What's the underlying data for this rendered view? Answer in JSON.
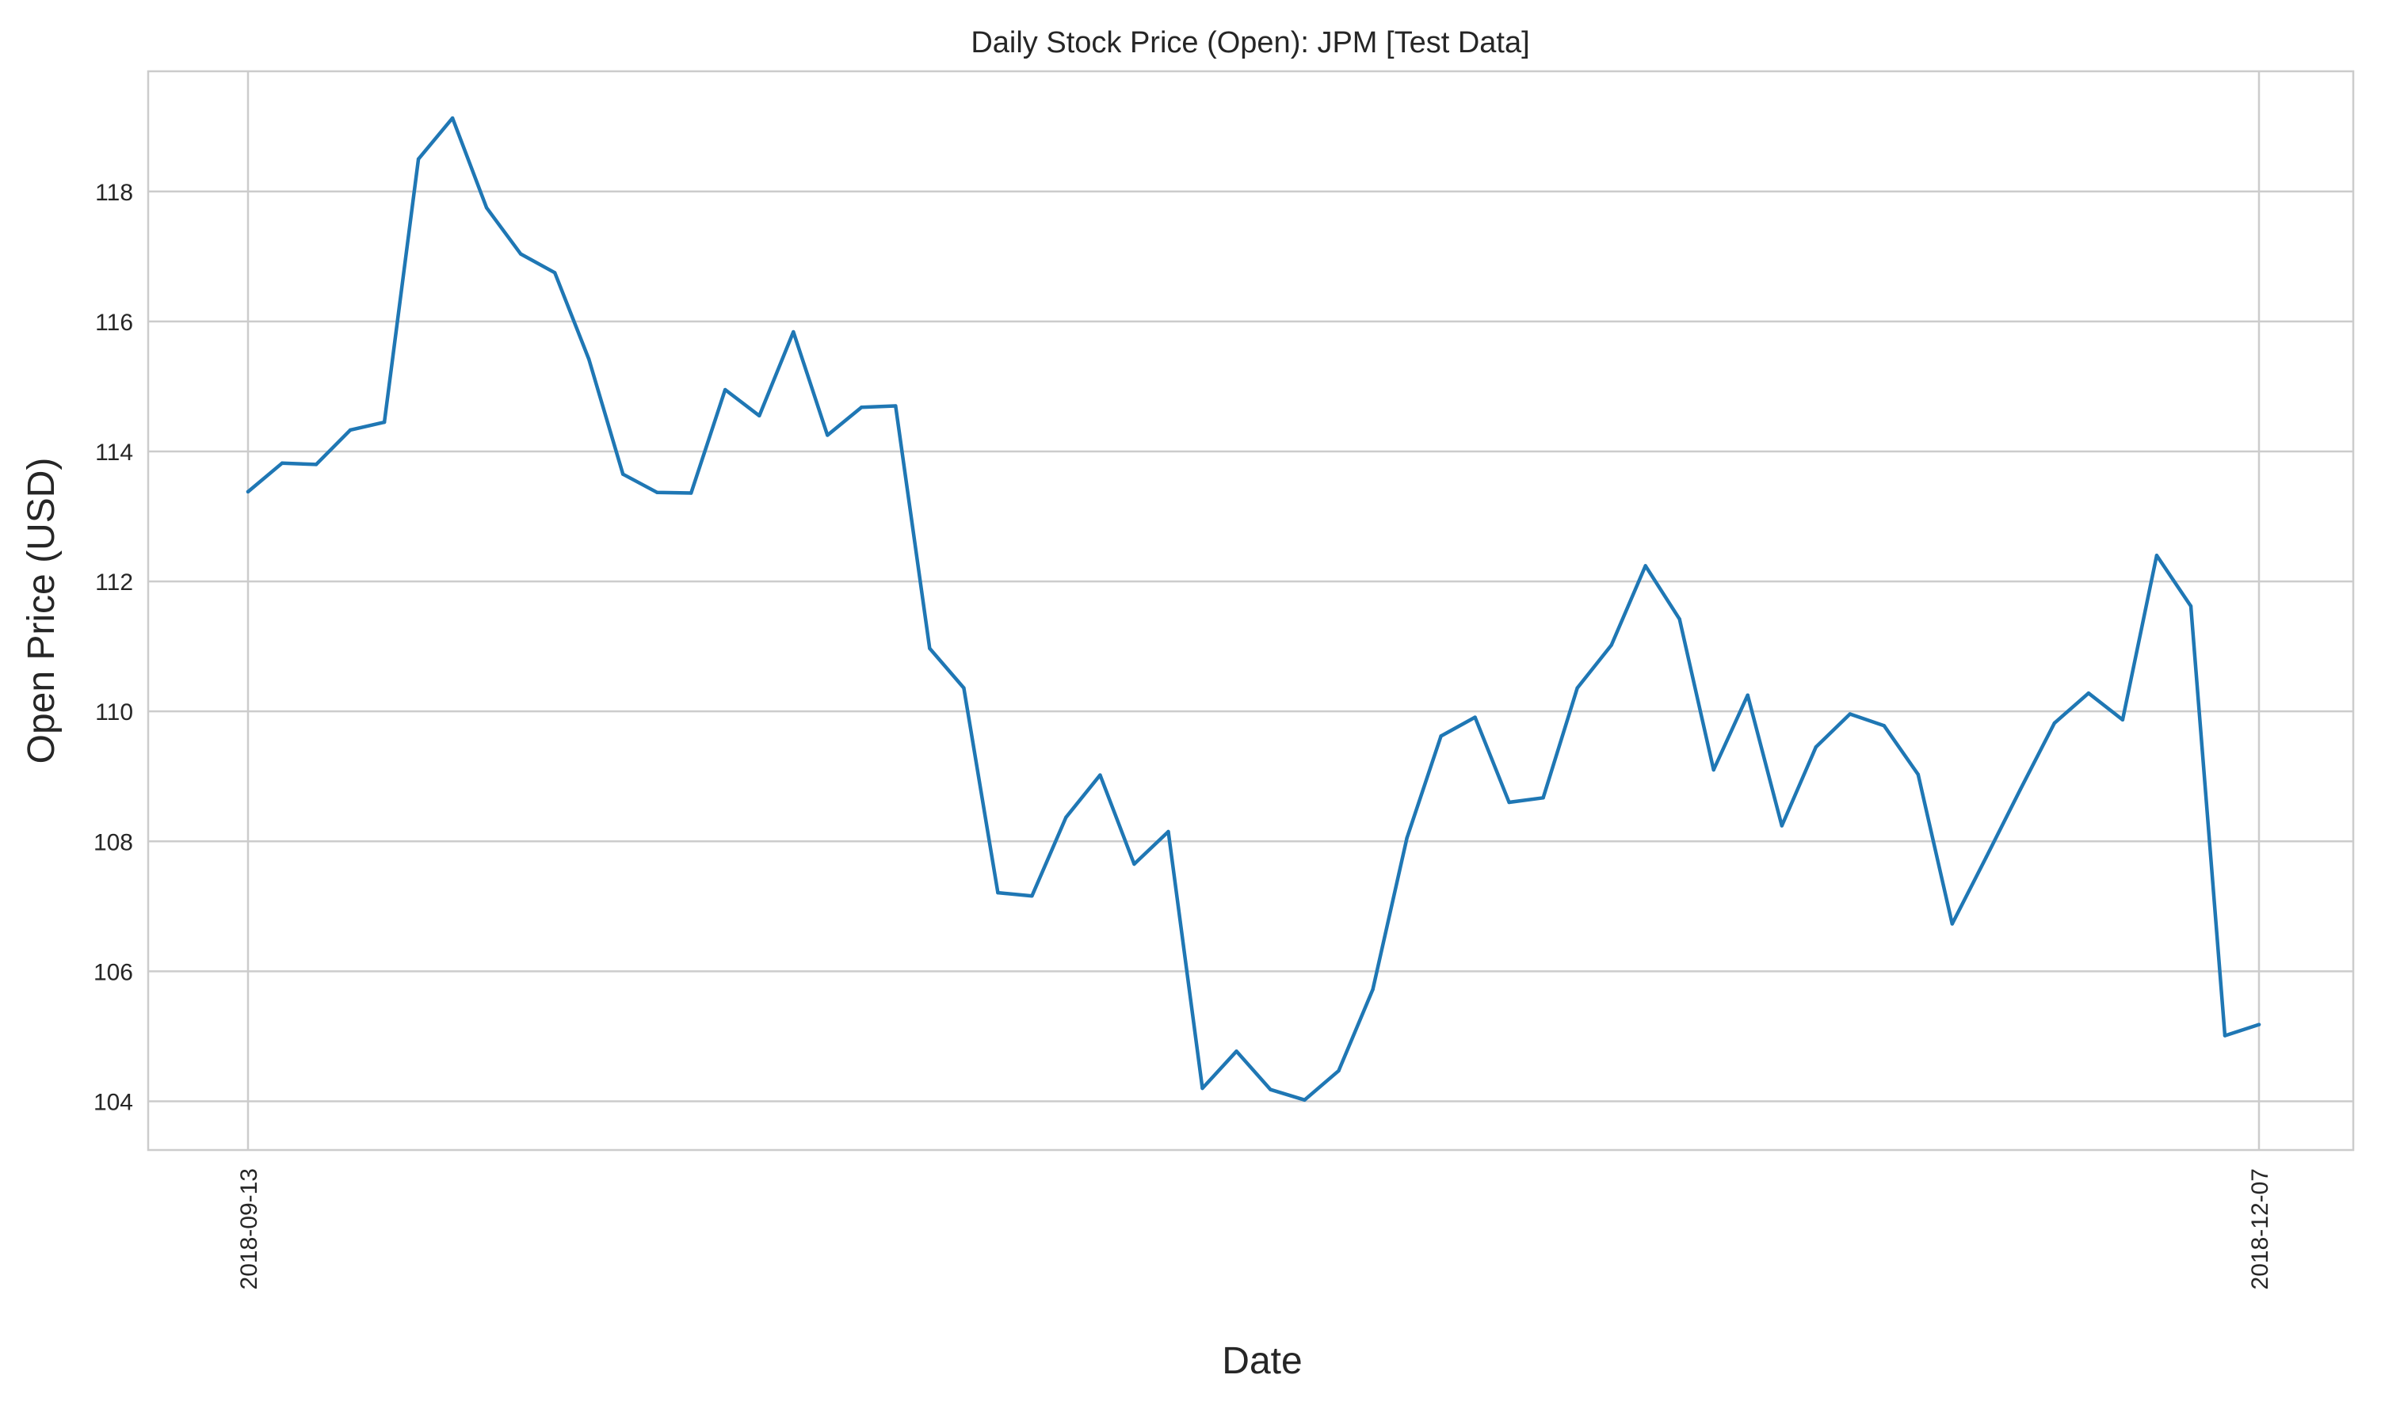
{
  "chart_data": {
    "type": "line",
    "title": "Daily Stock Price (Open): JPM [Test Data]",
    "xlabel": "Date",
    "ylabel": "Open Price (USD)",
    "x_tick_labels": [
      "2018-09-13",
      "2018-12-07"
    ],
    "y_ticks": [
      104,
      106,
      108,
      110,
      112,
      114,
      116,
      118
    ],
    "ylim": [
      103.25,
      119.85
    ],
    "grid": true,
    "legend": "none",
    "series": [
      {
        "color": "#1f77b4",
        "values": [
          113.38,
          113.82,
          113.8,
          114.33,
          114.45,
          118.5,
          119.13,
          117.75,
          117.04,
          116.75,
          115.42,
          113.65,
          113.37,
          113.36,
          114.95,
          114.55,
          115.84,
          114.25,
          114.68,
          114.7,
          110.97,
          110.36,
          107.21,
          107.16,
          108.37,
          109.02,
          107.65,
          108.15,
          104.2,
          104.77,
          104.18,
          104.02,
          104.47,
          105.72,
          108.05,
          109.62,
          109.91,
          108.6,
          108.67,
          110.36,
          111.02,
          112.24,
          111.42,
          109.1,
          110.25,
          108.24,
          109.45,
          109.96,
          109.78,
          109.03,
          106.73,
          107.76,
          108.8,
          109.82,
          110.28,
          109.87,
          112.4,
          111.62,
          105.01,
          105.18
        ]
      }
    ]
  }
}
